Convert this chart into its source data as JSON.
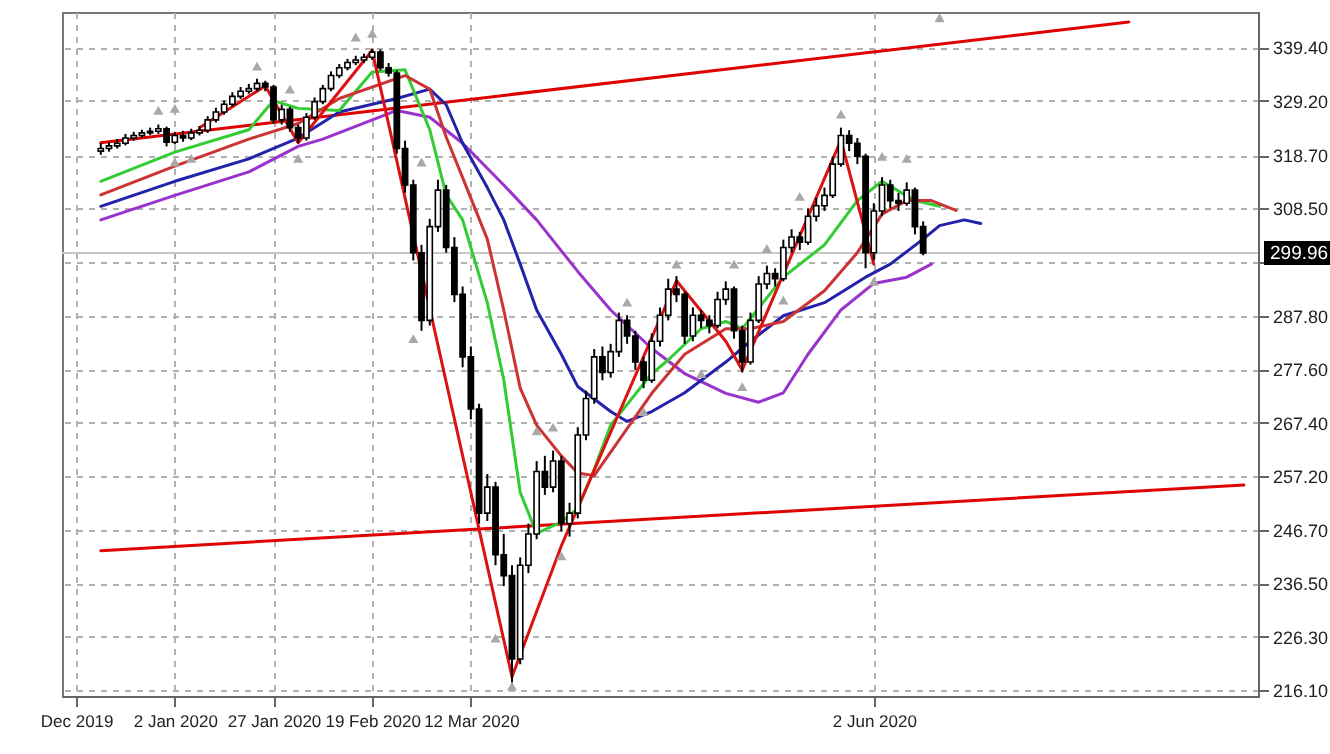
{
  "chart_data": {
    "type": "candlestick",
    "categories": [
      "Dec 2019",
      null,
      null,
      null,
      null,
      null,
      null,
      null,
      null,
      null,
      null,
      null,
      "2 Jan 2020",
      null,
      null,
      null,
      null,
      null,
      null,
      null,
      null,
      null,
      null,
      null,
      "27 Jan 2020",
      null,
      null,
      null,
      null,
      null,
      null,
      null,
      null,
      null,
      null,
      null,
      "19 Feb 2020",
      null,
      null,
      null,
      null,
      null,
      null,
      null,
      null,
      null,
      null,
      null,
      "12 Mar 2020",
      null,
      null,
      null,
      null,
      null,
      null,
      null,
      null,
      null,
      null,
      null,
      null,
      null,
      null,
      null,
      null,
      null,
      null,
      null,
      null,
      null,
      null,
      null,
      null,
      null,
      null,
      null,
      null,
      null,
      null,
      null,
      null,
      null,
      null,
      null,
      null,
      null,
      null,
      null,
      null,
      null,
      null,
      null,
      null,
      null,
      null,
      null,
      null,
      "2 Jun 2020",
      null,
      null,
      null,
      null,
      null,
      null,
      null,
      null,
      null,
      null,
      null,
      null,
      null,
      null,
      null,
      null,
      null,
      null,
      null,
      null,
      null,
      null,
      null,
      null,
      null,
      null,
      null,
      null,
      null,
      null,
      null,
      null,
      null,
      null,
      null,
      null,
      null,
      null,
      null,
      null,
      null,
      null,
      null,
      null,
      null
    ],
    "ylim": [
      214.9,
      346.2
    ],
    "yticks": [
      {
        "value": 216.1,
        "label": "216.10"
      },
      {
        "value": 226.3,
        "label": "226.30"
      },
      {
        "value": 236.5,
        "label": "236.50"
      },
      {
        "value": 246.7,
        "label": "246.70"
      },
      {
        "value": 257.2,
        "label": "257.20"
      },
      {
        "value": 267.4,
        "label": "267.40"
      },
      {
        "value": 277.6,
        "label": "277.60"
      },
      {
        "value": 287.8,
        "label": "287.80"
      },
      {
        "value": 298.3,
        "label": null
      },
      {
        "value": 308.5,
        "label": "308.50"
      },
      {
        "value": 318.7,
        "label": "318.70"
      },
      {
        "value": 329.2,
        "label": "329.20"
      },
      {
        "value": 339.4,
        "label": "339.40"
      }
    ],
    "grid": true,
    "ref_lines": [
      {
        "axis": "y",
        "value": 299.96,
        "label": "299.96",
        "color": "#c8c8c8"
      }
    ],
    "series": [
      {
        "type": "line",
        "color": "#e00000",
        "values": [
          null,
          null,
          null,
          321.1,
          null,
          null,
          null,
          null,
          null,
          null,
          null,
          null,
          null,
          null,
          null,
          null,
          null,
          null,
          null,
          null,
          null,
          null,
          null,
          null,
          null,
          null,
          null,
          null,
          null,
          null,
          null,
          null,
          null,
          null,
          null,
          null,
          null,
          null,
          null,
          null,
          null,
          null,
          null,
          null,
          null,
          null,
          null,
          null,
          null,
          null,
          null,
          null,
          null,
          null,
          null,
          null,
          null,
          null,
          null,
          null,
          null,
          null,
          null,
          null,
          null,
          null,
          null,
          null,
          null,
          null,
          null,
          null,
          null,
          null,
          null,
          null,
          null,
          null,
          null,
          null,
          null,
          null,
          null,
          null,
          null,
          null,
          null,
          null,
          null,
          null,
          null,
          null,
          null,
          null,
          null,
          null,
          null,
          null,
          null,
          null,
          null,
          null,
          null,
          null,
          null,
          null,
          null,
          null,
          null,
          null,
          null,
          null,
          null,
          null,
          null,
          null,
          null,
          null,
          null,
          null,
          null,
          null,
          null,
          null,
          null,
          null,
          null,
          null,
          344.3,
          null,
          null,
          null,
          null,
          null,
          null,
          null,
          null,
          null,
          null,
          null,
          null,
          null,
          null
        ]
      },
      {
        "type": "line",
        "color": "#e00000",
        "values": [
          null,
          null,
          null,
          242.8,
          null,
          null,
          null,
          null,
          null,
          null,
          null,
          null,
          null,
          null,
          null,
          null,
          null,
          null,
          null,
          null,
          null,
          null,
          null,
          null,
          null,
          null,
          null,
          null,
          null,
          null,
          null,
          null,
          null,
          null,
          null,
          null,
          null,
          null,
          null,
          null,
          null,
          null,
          null,
          null,
          null,
          null,
          null,
          null,
          null,
          null,
          null,
          null,
          null,
          null,
          null,
          null,
          null,
          null,
          null,
          null,
          null,
          null,
          null,
          null,
          null,
          null,
          null,
          null,
          null,
          null,
          null,
          null,
          null,
          null,
          null,
          null,
          null,
          null,
          null,
          null,
          null,
          null,
          null,
          null,
          null,
          null,
          null,
          null,
          null,
          null,
          null,
          null,
          null,
          null,
          null,
          null,
          null,
          null,
          null,
          null,
          null,
          null,
          null,
          null,
          null,
          null,
          null,
          null,
          null,
          null,
          null,
          null,
          null,
          null,
          null,
          null,
          null,
          null,
          null,
          null,
          null,
          null,
          null,
          null,
          null,
          null,
          null,
          null,
          null,
          null,
          null,
          null,
          null,
          null,
          null,
          null,
          null,
          null,
          null,
          null,
          null,
          null,
          255.4
        ]
      },
      {
        "type": "line",
        "color": "#9933cc",
        "values": [
          null,
          null,
          null,
          306.3,
          null,
          null,
          null,
          null,
          null,
          null,
          null,
          null,
          311,
          null,
          null,
          null,
          null,
          null,
          null,
          null,
          null,
          315.5,
          null,
          null,
          null,
          null,
          null,
          320.4,
          null,
          null,
          321.8,
          null,
          null,
          null,
          null,
          null,
          null,
          null,
          null,
          327.3,
          null,
          null,
          null,
          326,
          null,
          null,
          null,
          321,
          null,
          null,
          null,
          null,
          313,
          null,
          null,
          null,
          306.3,
          null,
          null,
          null,
          null,
          296.4,
          null,
          null,
          null,
          289,
          null,
          null,
          null,
          null,
          281.6,
          null,
          null,
          null,
          276.8,
          null,
          null,
          null,
          null,
          273,
          null,
          null,
          null,
          271.3,
          null,
          null,
          273.1,
          null,
          null,
          280.5,
          null,
          null,
          null,
          289,
          null,
          null,
          null,
          294.1,
          null,
          null,
          null,
          295.3,
          null,
          null,
          297.8,
          null,
          null,
          null,
          null,
          null,
          null,
          null,
          null,
          null,
          null,
          null,
          null,
          null,
          null,
          null,
          null,
          null,
          null,
          null,
          null,
          null,
          null,
          null,
          null,
          null,
          null,
          null,
          null,
          null,
          null,
          null,
          null,
          null,
          null,
          null,
          null,
          null,
          null
        ]
      },
      {
        "type": "line",
        "color": "#2222aa",
        "values": [
          null,
          null,
          null,
          308.9,
          null,
          null,
          null,
          null,
          null,
          null,
          null,
          null,
          313.7,
          null,
          null,
          null,
          null,
          null,
          null,
          null,
          null,
          318,
          null,
          null,
          null,
          null,
          null,
          322,
          null,
          null,
          null,
          null,
          327,
          null,
          null,
          null,
          null,
          null,
          null,
          329.6,
          null,
          null,
          null,
          331.4,
          null,
          328.4,
          null,
          321,
          null,
          null,
          312.5,
          null,
          306.3,
          null,
          297.8,
          null,
          289,
          null,
          null,
          280.5,
          null,
          274.3,
          null,
          null,
          null,
          269.5,
          null,
          267.6,
          null,
          null,
          269.5,
          null,
          null,
          null,
          273.1,
          null,
          null,
          null,
          null,
          279,
          null,
          null,
          283,
          null,
          null,
          null,
          287.9,
          null,
          null,
          null,
          null,
          290.4,
          null,
          null,
          null,
          null,
          295.3,
          null,
          null,
          297.8,
          null,
          null,
          null,
          302.6,
          null,
          305.2,
          null,
          null,
          306.3,
          null,
          305.6,
          null,
          null,
          null,
          null,
          null,
          null,
          null,
          null,
          null,
          null,
          null,
          null,
          null,
          null,
          null,
          null,
          null,
          null,
          null,
          null,
          null,
          null,
          null,
          null,
          null,
          null,
          null,
          null,
          null,
          null,
          null,
          null
        ]
      },
      {
        "type": "line",
        "color": "#33cc33",
        "values": [
          null,
          null,
          null,
          313.7,
          null,
          null,
          null,
          null,
          null,
          null,
          null,
          null,
          319.3,
          null,
          null,
          null,
          null,
          null,
          null,
          null,
          null,
          323.6,
          null,
          null,
          329.2,
          null,
          null,
          327.7,
          null,
          null,
          null,
          null,
          327.3,
          null,
          null,
          null,
          334.7,
          null,
          null,
          null,
          335.1,
          null,
          null,
          323.6,
          null,
          311.1,
          null,
          306.3,
          null,
          null,
          290.4,
          null,
          275.6,
          null,
          254,
          null,
          246.1,
          null,
          null,
          248.3,
          null,
          250.9,
          null,
          258.4,
          null,
          266.9,
          null,
          null,
          null,
          null,
          276.8,
          null,
          279.4,
          null,
          null,
          null,
          285.4,
          null,
          null,
          286.8,
          null,
          285.4,
          null,
          null,
          null,
          null,
          295.3,
          null,
          null,
          null,
          null,
          301.5,
          null,
          null,
          null,
          310,
          null,
          null,
          313.7,
          null,
          null,
          null,
          310,
          null,
          null,
          308.9,
          null,
          null,
          null,
          null,
          null,
          null,
          null,
          null,
          null,
          null,
          null,
          null,
          null,
          null,
          null,
          null,
          null,
          null,
          null,
          null,
          null,
          null,
          null,
          null,
          null,
          null,
          null,
          null,
          null,
          null,
          null,
          null,
          null,
          null,
          null,
          null,
          null
        ]
      },
      {
        "type": "line",
        "color": "#cc3333",
        "values": [
          null,
          null,
          null,
          311.1,
          null,
          null,
          null,
          null,
          null,
          null,
          null,
          null,
          316.6,
          null,
          null,
          null,
          null,
          null,
          null,
          null,
          null,
          321.8,
          null,
          null,
          null,
          null,
          null,
          324.8,
          null,
          null,
          null,
          null,
          329.6,
          null,
          null,
          null,
          null,
          null,
          null,
          null,
          334,
          null,
          null,
          331.4,
          null,
          322.2,
          null,
          314.4,
          null,
          null,
          302.6,
          null,
          289,
          null,
          274,
          null,
          266.9,
          null,
          null,
          261,
          null,
          257.7,
          null,
          257.2,
          null,
          null,
          null,
          null,
          null,
          null,
          273,
          null,
          null,
          null,
          280.5,
          null,
          null,
          null,
          null,
          285.4,
          null,
          null,
          285.4,
          null,
          null,
          null,
          286.8,
          null,
          null,
          null,
          null,
          292.7,
          null,
          null,
          null,
          300,
          null,
          null,
          307.4,
          null,
          null,
          310,
          null,
          null,
          310,
          null,
          null,
          308.1,
          null,
          null,
          null,
          null,
          null,
          null,
          null,
          null,
          null,
          null,
          null,
          null,
          null,
          null,
          null,
          null,
          null,
          null,
          null,
          null,
          null,
          null,
          null,
          null,
          null,
          null,
          null,
          null,
          null,
          null,
          null,
          null,
          null,
          null,
          null
        ]
      },
      {
        "type": "line",
        "color": "#dd1111",
        "values": [
          null,
          null,
          null,
          null,
          null,
          null,
          null,
          null,
          null,
          null,
          null,
          null,
          null,
          null,
          null,
          324,
          null,
          null,
          null,
          null,
          null,
          null,
          null,
          332,
          null,
          null,
          null,
          321.1,
          null,
          null,
          null,
          null,
          null,
          null,
          null,
          null,
          338.8,
          null,
          null,
          null,
          null,
          null,
          null,
          null,
          null,
          null,
          null,
          null,
          null,
          null,
          null,
          null,
          null,
          218.6,
          null,
          null,
          null,
          null,
          null,
          243.7,
          null,
          null,
          null,
          null,
          null,
          null,
          null,
          null,
          null,
          null,
          null,
          null,
          null,
          294.6,
          null,
          null,
          null,
          null,
          null,
          283,
          null,
          277.5,
          null,
          null,
          null,
          null,
          null,
          null,
          null,
          null,
          null,
          null,
          null,
          321.6,
          null,
          null,
          null,
          297.8,
          null,
          null,
          null,
          null,
          null,
          null,
          null,
          null,
          null,
          null,
          null,
          null,
          null,
          null,
          null,
          null,
          null,
          null,
          null,
          null,
          null,
          null,
          null,
          null,
          null,
          null,
          null,
          null,
          null,
          null,
          null,
          null,
          null,
          null,
          null,
          null,
          null,
          null,
          null,
          null,
          null,
          null,
          null,
          null,
          null
        ]
      },
      {
        "type": "scatter",
        "color": "#a8a8a8",
        "marker": "triangle",
        "values": [
          null,
          null,
          null,
          null,
          null,
          null,
          null,
          null,
          null,
          null,
          327.3,
          null,
          327.7,
          null,
          null,
          null,
          null,
          null,
          null,
          null,
          null,
          null,
          335.8,
          null,
          null,
          null,
          331.4,
          null,
          null,
          null,
          null,
          null,
          null,
          null,
          341.4,
          null,
          342.1,
          null,
          null,
          null,
          null,
          null,
          317.4,
          null,
          null,
          null,
          null,
          null,
          null,
          null,
          null,
          null,
          null,
          null,
          null,
          null,
          265.8,
          null,
          266.5,
          null,
          null,
          null,
          null,
          null,
          null,
          null,
          null,
          290.5,
          null,
          null,
          null,
          null,
          null,
          297.8,
          null,
          null,
          null,
          null,
          null,
          null,
          297.8,
          null,
          null,
          null,
          300.8,
          null,
          null,
          null,
          310.8,
          null,
          null,
          null,
          null,
          326.6,
          null,
          null,
          null,
          null,
          318.5,
          null,
          null,
          318.1,
          null,
          null,
          null,
          345.1,
          null,
          null,
          null,
          null,
          null,
          null,
          null,
          null,
          null,
          null,
          null,
          null,
          null,
          null,
          null,
          null,
          null,
          null,
          null,
          null,
          null,
          null,
          null,
          null,
          null,
          null,
          null,
          null,
          null,
          null,
          null,
          null,
          null,
          null,
          null,
          null,
          null
        ]
      },
      {
        "type": "scatter",
        "color": "#a8a8a8",
        "marker": "triangle",
        "values": [
          null,
          null,
          null,
          null,
          null,
          null,
          null,
          null,
          null,
          null,
          null,
          null,
          317.4,
          null,
          318.1,
          null,
          null,
          null,
          null,
          null,
          null,
          null,
          null,
          null,
          null,
          null,
          null,
          318.1,
          null,
          null,
          null,
          null,
          null,
          null,
          null,
          null,
          null,
          null,
          null,
          null,
          null,
          283.5,
          null,
          null,
          null,
          null,
          null,
          null,
          null,
          null,
          null,
          226,
          null,
          216.8,
          null,
          null,
          null,
          null,
          null,
          241.8,
          null,
          null,
          null,
          null,
          null,
          null,
          null,
          null,
          null,
          269.5,
          null,
          null,
          null,
          null,
          null,
          null,
          276.8,
          null,
          null,
          null,
          null,
          274.3,
          null,
          null,
          null,
          null,
          290.9,
          null,
          null,
          null,
          null,
          null,
          null,
          null,
          null,
          null,
          null,
          294.5,
          null,
          null,
          null,
          null,
          null,
          null,
          null,
          null,
          null,
          null,
          null,
          null,
          null,
          null,
          null,
          null,
          null,
          null,
          null,
          null,
          null,
          null,
          null,
          null,
          null,
          null,
          null,
          null,
          null,
          null,
          null,
          null,
          null,
          null,
          null,
          null,
          null,
          null,
          null,
          null,
          null,
          null,
          null,
          null,
          null
        ]
      },
      {
        "type": "candlestick",
        "color": "#000000",
        "ohlc": [
          null,
          null,
          null,
          [
            319.5,
            321,
            318.8,
            320
          ],
          [
            320,
            321.3,
            319.4,
            320.5
          ],
          [
            320.5,
            321.8,
            320,
            321
          ],
          [
            321,
            322.8,
            320.6,
            322
          ],
          [
            322,
            323.2,
            321.5,
            322.5
          ],
          [
            322.5,
            323.6,
            322,
            323
          ],
          [
            323,
            324,
            322.6,
            323.3
          ],
          [
            323.3,
            324.6,
            322.8,
            323.8
          ],
          [
            323.8,
            324.2,
            320.4,
            321.2
          ],
          [
            321.2,
            323.2,
            320.8,
            322.5
          ],
          [
            322.5,
            323.4,
            321.3,
            322
          ],
          [
            322,
            323.8,
            321.6,
            323
          ],
          [
            323,
            324.3,
            322.5,
            323.5
          ],
          [
            323.5,
            326.2,
            323,
            325.5
          ],
          [
            325.5,
            327.8,
            325,
            327
          ],
          [
            327,
            329.2,
            326.5,
            328.5
          ],
          [
            328.5,
            330.8,
            328,
            330
          ],
          [
            330,
            331.8,
            329.5,
            331
          ],
          [
            331,
            332.4,
            330.5,
            331.5
          ],
          [
            331.5,
            333.4,
            331,
            332.5
          ],
          [
            332.5,
            333,
            331,
            331.8
          ],
          [
            331.8,
            332.2,
            324.8,
            325.5
          ],
          [
            325.5,
            328.4,
            324.6,
            327.5
          ],
          [
            327.5,
            328,
            323.2,
            324
          ],
          [
            324,
            324.6,
            321,
            322
          ],
          [
            322,
            326.8,
            321.5,
            326
          ],
          [
            326,
            329.8,
            325.5,
            329
          ],
          [
            329,
            332.2,
            328.5,
            331.5
          ],
          [
            331.5,
            334.8,
            331,
            334
          ],
          [
            334,
            336.2,
            333.5,
            335.5
          ],
          [
            335.5,
            337.2,
            335,
            336.5
          ],
          [
            336.5,
            337.8,
            336,
            337
          ],
          [
            337,
            338.2,
            336.4,
            337.5
          ],
          [
            337.5,
            339.2,
            337,
            338.5
          ],
          [
            338.5,
            339,
            335,
            335.5
          ],
          [
            335.5,
            336.4,
            333.8,
            334.5
          ],
          [
            334.5,
            335,
            319,
            320
          ],
          [
            320,
            321.5,
            311.5,
            313
          ],
          [
            313,
            314,
            298.5,
            300
          ],
          [
            300,
            301.5,
            285,
            287
          ],
          [
            287,
            306.5,
            286,
            305
          ],
          [
            305,
            314,
            304,
            312
          ],
          [
            312,
            313,
            300,
            301
          ],
          [
            301,
            303,
            290.5,
            292
          ],
          [
            292,
            293.5,
            278,
            280
          ],
          [
            280,
            282,
            268,
            270
          ],
          [
            270,
            271,
            248,
            250
          ],
          [
            250,
            257.5,
            248.5,
            255
          ],
          [
            255,
            256,
            240,
            242
          ],
          [
            242,
            246,
            236,
            238
          ],
          [
            238,
            240,
            217.5,
            222
          ],
          [
            222,
            241.5,
            221,
            240
          ],
          [
            240,
            248,
            238.5,
            246
          ],
          [
            246,
            260,
            245,
            258
          ],
          [
            258,
            261,
            253.5,
            255
          ],
          [
            255,
            262,
            254,
            260
          ],
          [
            260,
            261,
            246.5,
            248
          ],
          [
            248,
            252,
            245.5,
            250
          ],
          [
            250,
            266.5,
            249,
            265
          ],
          [
            265,
            273.5,
            264,
            272
          ],
          [
            272,
            281.5,
            271,
            280
          ],
          [
            280,
            282,
            275.5,
            277
          ],
          [
            277,
            282.5,
            276,
            281
          ],
          [
            281,
            288.5,
            280,
            287
          ],
          [
            287,
            288,
            282.5,
            284
          ],
          [
            284,
            285,
            277.5,
            279
          ],
          [
            279,
            280,
            274,
            275.5
          ],
          [
            275.5,
            284.5,
            275,
            283
          ],
          [
            283,
            289.5,
            282,
            288
          ],
          [
            288,
            295,
            287,
            293
          ],
          [
            293,
            295.5,
            290.5,
            292
          ],
          [
            292,
            292.5,
            282.5,
            284
          ],
          [
            284,
            289.5,
            283,
            288
          ],
          [
            288,
            289,
            285.5,
            287
          ],
          [
            287,
            288,
            284.5,
            286
          ],
          [
            286,
            292.5,
            285.5,
            291
          ],
          [
            291,
            294.5,
            290,
            293
          ],
          [
            293,
            293.5,
            283.5,
            285
          ],
          [
            285,
            286,
            277,
            279
          ],
          [
            279,
            288.5,
            278.5,
            287
          ],
          [
            287,
            295.5,
            286.5,
            294
          ],
          [
            294,
            297.5,
            293,
            296
          ],
          [
            296,
            297,
            293.5,
            295
          ],
          [
            295,
            302.5,
            294.5,
            301
          ],
          [
            301,
            304.5,
            300,
            303
          ],
          [
            303,
            304,
            300.5,
            302
          ],
          [
            302,
            308.5,
            301.5,
            307
          ],
          [
            307,
            310.5,
            306,
            309
          ],
          [
            309,
            312.5,
            308,
            311
          ],
          [
            311,
            318.5,
            310.5,
            317
          ],
          [
            317,
            324,
            316.5,
            322.5
          ],
          [
            322.5,
            323.5,
            319.5,
            321
          ],
          [
            321,
            322,
            317,
            318.5
          ],
          [
            318.5,
            319,
            297,
            300
          ],
          [
            300,
            309.5,
            298.5,
            308
          ],
          [
            308,
            314.5,
            307,
            313
          ],
          [
            313,
            314,
            308.5,
            310
          ],
          [
            310,
            311.5,
            308,
            309.5
          ],
          [
            309.5,
            313.5,
            309,
            312
          ],
          [
            312,
            312.5,
            303.5,
            305
          ],
          [
            305,
            306,
            299.5,
            299.96
          ],
          null,
          null,
          null,
          null,
          null,
          null,
          null,
          null,
          null,
          null,
          null,
          null,
          null,
          null,
          null,
          null,
          null,
          null,
          null,
          null,
          null,
          null,
          null,
          null,
          null,
          null,
          null,
          null,
          null,
          null,
          null,
          null,
          null,
          null,
          null,
          null,
          null,
          null,
          null
        ]
      }
    ]
  }
}
